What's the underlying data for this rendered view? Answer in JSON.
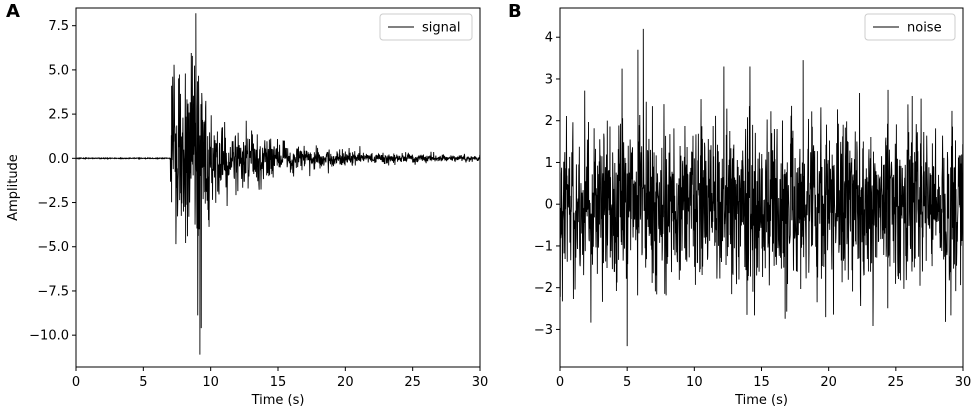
{
  "chart_data": [
    {
      "panel": "A",
      "type": "line",
      "title": "",
      "xlabel": "Time (s)",
      "ylabel": "Amplitude",
      "xlim": [
        0,
        30
      ],
      "ylim": [
        -11.8,
        8.5
      ],
      "x_ticks": [
        0,
        5,
        10,
        15,
        20,
        25,
        30
      ],
      "x_tick_labels": [
        "0",
        "5",
        "10",
        "15",
        "20",
        "25",
        "30"
      ],
      "y_ticks": [
        7.5,
        5.0,
        2.5,
        0.0,
        -2.5,
        -5.0,
        -7.5,
        -10.0
      ],
      "y_tick_labels": [
        "7.5",
        "5.0",
        "2.5",
        "0.0",
        "−2.5",
        "−5.0",
        "−7.5",
        "−10.0"
      ],
      "grid": false,
      "legend": {
        "position": "top-right",
        "entries": [
          "signal"
        ]
      },
      "series": [
        {
          "name": "signal",
          "color": "#000000",
          "description": "flat near 0 until ~7 s, abrupt onset; peak ~8.2 at ~9.0 s, trough ~-11.1 at ~9.2 s; decaying oscillation to ~0.1 by 30 s",
          "onset_time": 7.0,
          "peak_envelope": [
            [
              7.0,
              3.6
            ],
            [
              8.5,
              5.5
            ],
            [
              9.0,
              9.0
            ],
            [
              10.0,
              3.0
            ],
            [
              12.0,
              1.8
            ],
            [
              15.0,
              0.9
            ],
            [
              20.0,
              0.45
            ],
            [
              25.0,
              0.3
            ],
            [
              30.0,
              0.15
            ]
          ],
          "key_points": [
            [
              0,
              0.0
            ],
            [
              6.9,
              0.0
            ],
            [
              7.1,
              4.1
            ],
            [
              8.9,
              8.2
            ],
            [
              9.2,
              -11.1
            ],
            [
              9.3,
              -9.6
            ],
            [
              30,
              0.0
            ]
          ]
        }
      ]
    },
    {
      "panel": "B",
      "type": "line",
      "title": "",
      "xlabel": "Time (s)",
      "ylabel": "",
      "xlim": [
        0,
        30
      ],
      "ylim": [
        -3.9,
        4.7
      ],
      "x_ticks": [
        0,
        5,
        10,
        15,
        20,
        25,
        30
      ],
      "x_tick_labels": [
        "0",
        "5",
        "10",
        "15",
        "20",
        "25",
        "30"
      ],
      "y_ticks": [
        4,
        3,
        2,
        1,
        0,
        -1,
        -2,
        -3
      ],
      "y_tick_labels": [
        "4",
        "3",
        "2",
        "1",
        "0",
        "−1",
        "−2",
        "−3"
      ],
      "grid": false,
      "legend": {
        "position": "top-right",
        "entries": [
          "noise"
        ]
      },
      "series": [
        {
          "name": "noise",
          "color": "#000000",
          "description": "random noise with standard deviation ~1 over the full 0-30 s range",
          "std": 1.0,
          "key_points": [
            [
              5.8,
              3.7
            ],
            [
              6.2,
              4.2
            ],
            [
              18.1,
              3.45
            ],
            [
              5.0,
              -3.4
            ],
            [
              30,
              -2.5
            ]
          ]
        }
      ]
    }
  ]
}
